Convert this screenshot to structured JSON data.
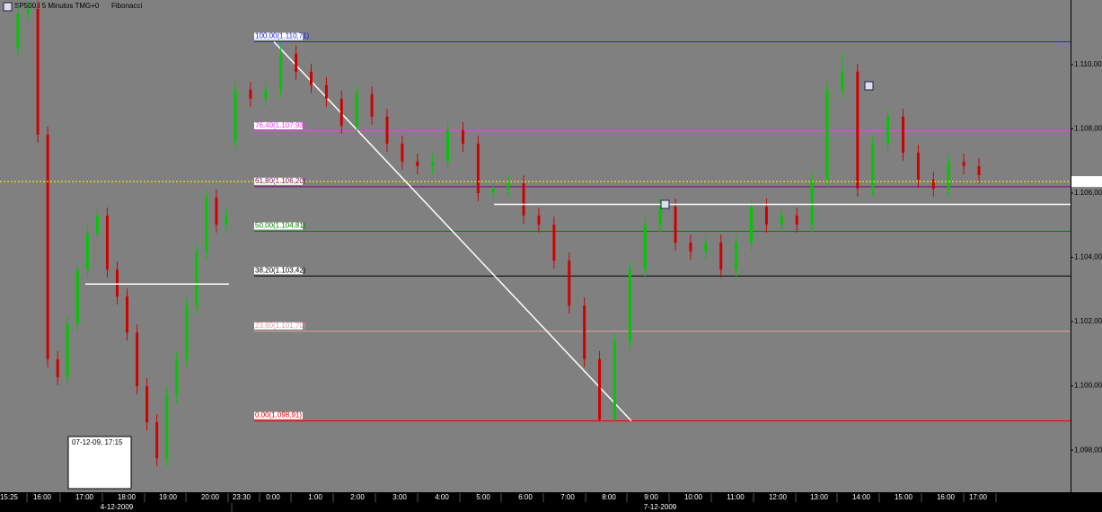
{
  "chart_data": {
    "type": "candlestick",
    "title": "SP500.I 5 Minutos TMG+0",
    "subtitle": "Fibonacci",
    "info_box": "07-12-09, 17:15",
    "up_color": "#00c800",
    "down_color": "#d00000",
    "ylim": [
      1096.69,
      1112.01
    ],
    "yticks": [
      {
        "value": 1098,
        "label": "1.098,00"
      },
      {
        "value": 1100,
        "label": "1.100,00"
      },
      {
        "value": 1102,
        "label": "1.102,00"
      },
      {
        "value": 1104,
        "label": "1.104,00"
      },
      {
        "value": 1106,
        "label": "1.106,00"
      },
      {
        "value": 1108,
        "label": "1.108,00"
      },
      {
        "value": 1110,
        "label": "1.110,00"
      }
    ],
    "xticks": [
      "15:25",
      "16:00",
      "17:00",
      "18:00",
      "19:00",
      "20:00",
      "23:30",
      "0:00",
      "1:00",
      "2:00",
      "3:00",
      "4:00",
      "5:00",
      "6:00",
      "7:00",
      "8:00",
      "9:00",
      "10:00",
      "11:00",
      "12:00",
      "13:00",
      "14:00",
      "15:00",
      "16:00",
      "17:00"
    ],
    "dates": [
      "4-12-2009",
      "7-12-2009"
    ],
    "open": [
      1110.5,
      1111.59,
      1111.73,
      1107.82,
      1100.83,
      1100.27,
      1101.94,
      1103.62,
      1104.74,
      1105.3,
      1103.62,
      1102.78,
      1101.66,
      1099.99,
      1098.87,
      1097.75,
      1099.71,
      1100.83,
      1102.5,
      1104.18,
      1105.86,
      1105.02,
      1107.6,
      1109.22,
      1108.94,
      1109.22,
      1110.34,
      1109.78,
      1109.36,
      1108.94,
      1108.1,
      1109.08,
      1108.38,
      1107.54,
      1106.98,
      1106.84,
      1106.98,
      1107.96,
      1107.54,
      1106.0,
      1106.14,
      1106.3,
      1105.3,
      1105.02,
      1103.9,
      1102.5,
      1100.83,
      1098.95,
      1101.38,
      1103.62,
      1105.02,
      1105.58,
      1104.46,
      1104.18,
      1104.46,
      1103.62,
      1104.46,
      1105.58,
      1105.02,
      1105.3,
      1105.02,
      1106.42,
      1109.22,
      1109.78,
      1106.14,
      1107.54,
      1108.38,
      1107.26,
      1106.42,
      1106.14,
      1106.98,
      1106.84
    ],
    "high": [
      1111.84,
      1111.98,
      1111.98,
      1108.07,
      1101.08,
      1102.19,
      1103.87,
      1104.99,
      1105.55,
      1105.55,
      1103.87,
      1103.03,
      1101.91,
      1100.24,
      1099.12,
      1099.96,
      1101.08,
      1102.75,
      1104.43,
      1106.11,
      1106.11,
      1105.55,
      1109.47,
      1109.47,
      1109.47,
      1110.71,
      1110.59,
      1110.03,
      1109.61,
      1109.19,
      1109.33,
      1109.33,
      1108.63,
      1107.79,
      1107.23,
      1107.23,
      1108.21,
      1108.21,
      1107.79,
      1106.39,
      1106.55,
      1106.55,
      1105.55,
      1105.27,
      1104.15,
      1102.75,
      1101.08,
      1101.63,
      1103.87,
      1105.27,
      1105.83,
      1105.83,
      1104.71,
      1104.71,
      1104.71,
      1104.71,
      1105.83,
      1105.83,
      1105.55,
      1105.55,
      1106.67,
      1109.47,
      1110.4,
      1110.03,
      1107.79,
      1108.63,
      1108.63,
      1107.51,
      1106.67,
      1107.23,
      1107.23,
      1107.09
    ],
    "low": [
      1110.25,
      1111.34,
      1107.57,
      1100.58,
      1100.02,
      1100.02,
      1101.69,
      1103.37,
      1104.49,
      1103.37,
      1102.53,
      1101.41,
      1099.74,
      1098.62,
      1097.5,
      1097.5,
      1099.46,
      1100.58,
      1102.25,
      1103.93,
      1104.77,
      1104.77,
      1107.35,
      1108.69,
      1108.69,
      1108.97,
      1109.53,
      1109.11,
      1108.69,
      1107.85,
      1107.85,
      1108.13,
      1107.29,
      1106.73,
      1106.59,
      1106.59,
      1106.73,
      1107.29,
      1105.75,
      1105.75,
      1105.89,
      1105.05,
      1104.77,
      1103.65,
      1102.25,
      1100.58,
      1098.91,
      1098.91,
      1101.13,
      1103.37,
      1104.77,
      1104.21,
      1103.93,
      1103.93,
      1103.37,
      1103.37,
      1104.21,
      1104.77,
      1104.77,
      1104.77,
      1104.77,
      1106.17,
      1108.97,
      1105.89,
      1105.89,
      1107.29,
      1107.01,
      1106.17,
      1105.89,
      1105.89,
      1106.59,
      1106.31
    ],
    "close": [
      1111.59,
      1111.73,
      1107.82,
      1100.83,
      1100.27,
      1101.94,
      1103.62,
      1104.74,
      1105.3,
      1103.62,
      1102.78,
      1101.66,
      1099.99,
      1098.87,
      1097.75,
      1099.71,
      1100.83,
      1102.5,
      1104.18,
      1105.86,
      1105.02,
      1105.3,
      1109.22,
      1108.94,
      1109.22,
      1110.34,
      1109.78,
      1109.36,
      1108.94,
      1108.1,
      1109.08,
      1108.38,
      1107.54,
      1106.98,
      1106.84,
      1106.98,
      1107.96,
      1107.54,
      1106.0,
      1106.14,
      1106.3,
      1105.3,
      1105.02,
      1103.9,
      1102.5,
      1100.83,
      1098.95,
      1101.38,
      1103.62,
      1105.02,
      1105.58,
      1104.46,
      1104.18,
      1104.46,
      1103.62,
      1104.46,
      1105.58,
      1105.02,
      1105.3,
      1105.02,
      1106.42,
      1109.22,
      1109.78,
      1106.14,
      1107.54,
      1108.38,
      1107.26,
      1106.42,
      1106.14,
      1106.98,
      1106.84,
      1106.56
    ],
    "fib_levels": [
      {
        "label": "100,00(1.110,71)",
        "value": 1110.71,
        "color": "#2020ff"
      },
      {
        "label": "76,40(1.107,93)",
        "value": 1107.93,
        "color": "#ff33ff"
      },
      {
        "label": "61,80(1.106,20)",
        "value": 1106.2,
        "color": "#800080"
      },
      {
        "label": "50,00(1.104,81)",
        "value": 1104.81,
        "color": "#008000"
      },
      {
        "label": "38,20(1.103,42)",
        "value": 1103.42,
        "color": "#000000"
      },
      {
        "label": "23,60(1.101,70)",
        "value": 1101.7,
        "color": "#e0a0a0"
      },
      {
        "label": "0,00(1.098,91)",
        "value": 1098.91,
        "color": "#e00000"
      }
    ],
    "hlines": [
      1103.17,
      1105.65
    ],
    "current_price": 1106.36
  }
}
